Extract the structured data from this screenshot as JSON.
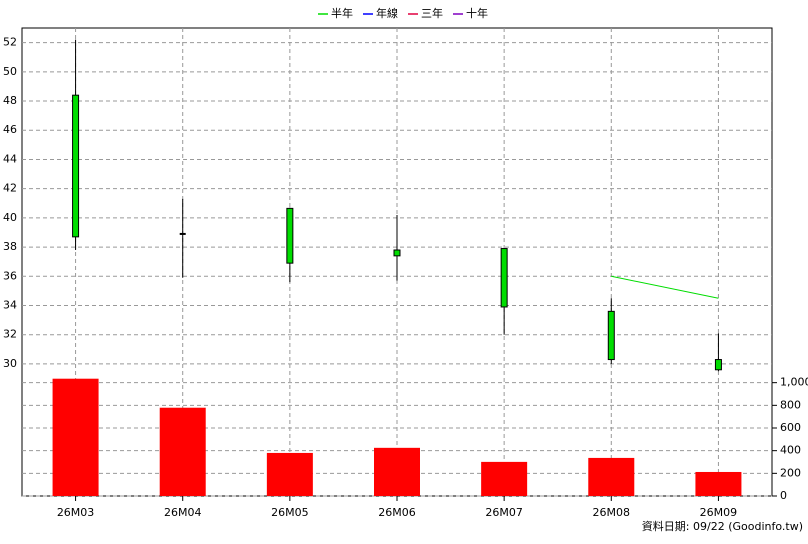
{
  "chart_data": {
    "type": "candlestick",
    "categories": [
      "26M03",
      "26M04",
      "26M05",
      "26M06",
      "26M07",
      "26M08",
      "26M09"
    ],
    "open": [
      48.4,
      38.9,
      40.65,
      37.8,
      37.9,
      33.6,
      30.3
    ],
    "high": [
      52.2,
      41.3,
      40.7,
      40.2,
      37.9,
      34.5,
      32.1
    ],
    "low": [
      37.8,
      35.9,
      35.6,
      35.7,
      32.0,
      30.0,
      29.5
    ],
    "close": [
      38.7,
      38.9,
      36.9,
      37.4,
      33.9,
      30.3,
      29.6
    ],
    "up_color": "#ff0000",
    "down_color": "#00dd00",
    "ylim": [
      28.9,
      53
    ],
    "yticks": [
      30,
      32,
      34,
      36,
      38,
      40,
      42,
      44,
      46,
      48,
      50,
      52
    ],
    "grid": true,
    "series": [
      {
        "name": "半年",
        "color": "#00dd00",
        "values": [
          null,
          null,
          null,
          null,
          null,
          36.0,
          34.5
        ]
      },
      {
        "name": "年線",
        "color": "#0000ff",
        "values": [
          null,
          null,
          null,
          null,
          null,
          null,
          null
        ]
      },
      {
        "name": "三年",
        "color": "#e00040",
        "values": [
          null,
          null,
          null,
          null,
          null,
          null,
          null
        ]
      },
      {
        "name": "十年",
        "color": "#8000c0",
        "values": [
          null,
          null,
          null,
          null,
          null,
          null,
          null
        ]
      }
    ],
    "volume": {
      "color": "#ff0000",
      "values": [
        1035,
        779,
        380,
        425,
        301,
        336,
        212
      ],
      "ylim": [
        0,
        1050
      ],
      "yticks": [
        0,
        200,
        400,
        600,
        800,
        {
          "value": 1000,
          "label": "1,000"
        }
      ]
    },
    "footnote": "資料日期: 09/22  (Goodinfo.tw)"
  }
}
